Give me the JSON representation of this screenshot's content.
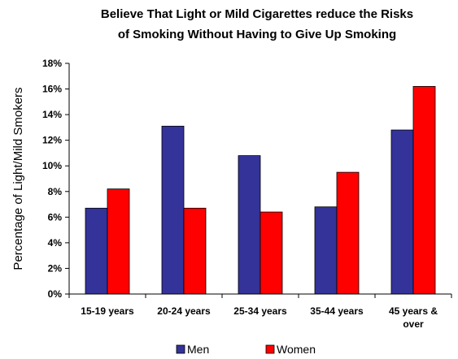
{
  "chart_data": {
    "type": "bar",
    "title_lines": [
      "Believe That Light or Mild Cigarettes reduce the Risks",
      "of Smoking Without Having to Give Up Smoking"
    ],
    "ylabel": "Percentage of Light/Mild Smokers",
    "xlabel": "",
    "categories": [
      [
        "15-19 years"
      ],
      [
        "20-24 years"
      ],
      [
        "25-34 years"
      ],
      [
        "35-44 years"
      ],
      [
        "45 years &",
        "over"
      ]
    ],
    "series": [
      {
        "name": "Men",
        "color": "#333399",
        "values": [
          6.7,
          13.1,
          10.8,
          6.8,
          12.8
        ]
      },
      {
        "name": "Women",
        "color": "#ff0000",
        "values": [
          8.2,
          6.7,
          6.4,
          9.5,
          16.2
        ]
      }
    ],
    "ylim": [
      0,
      18
    ],
    "yticks": [
      0,
      2,
      4,
      6,
      8,
      10,
      12,
      14,
      16,
      18
    ],
    "ytick_labels": [
      "0%",
      "2%",
      "4%",
      "6%",
      "8%",
      "10%",
      "12%",
      "14%",
      "16%",
      "18%"
    ],
    "grid": false,
    "legend_position": "bottom"
  }
}
